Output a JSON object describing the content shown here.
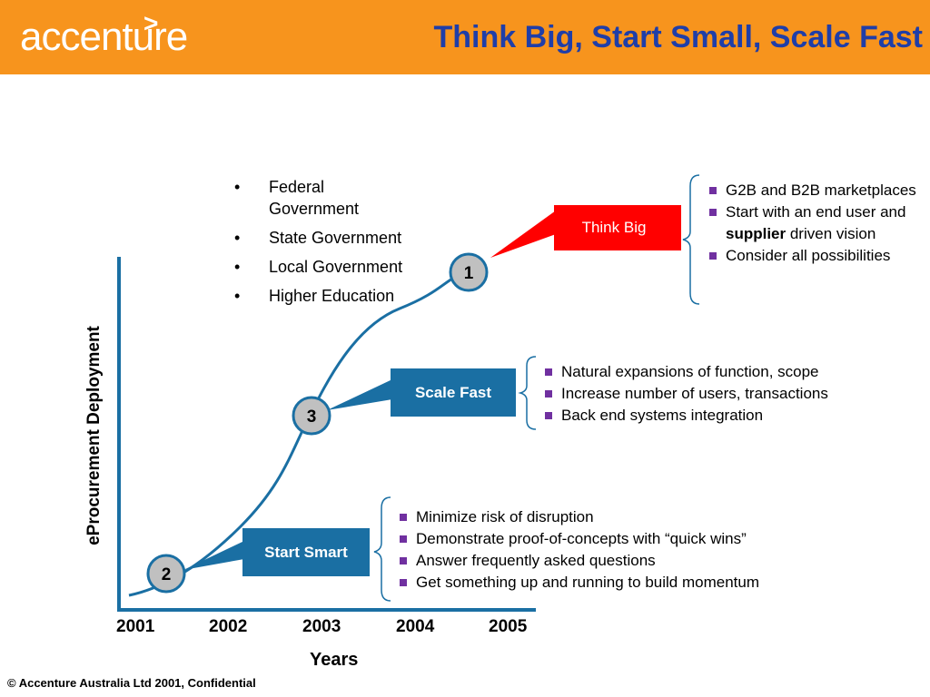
{
  "header": {
    "logo_text": "accenture",
    "logo_mark": ">",
    "title": "Think Big, Start Small, Scale Fast"
  },
  "colors": {
    "header_bg": "#f7941d",
    "title_color": "#1f3ea8",
    "think_big": "#ff0000",
    "stage_blue": "#1a6fa3",
    "curve": "#1a6fa3",
    "bullet": "#7030a0",
    "node_fill": "#c0c0c0"
  },
  "axes": {
    "ylabel": "eProcurement  Deployment",
    "xlabel": "Years",
    "ticks": [
      "2001",
      "2002",
      "2003",
      "2004",
      "2005"
    ]
  },
  "segments": [
    "Federal Government",
    "State Government",
    "Local Government",
    "Higher Education"
  ],
  "stages": {
    "think_big": {
      "number": "1",
      "label": "Think Big",
      "points": [
        "G2B and B2B marketplaces",
        "Start with an end user and supplier  driven vision",
        "Consider all possibilities"
      ]
    },
    "start_smart": {
      "number": "2",
      "label": "Start Smart",
      "points": [
        "Minimize risk of disruption",
        "Demonstrate proof-of-concepts with “quick wins”",
        "Answer frequently asked questions",
        "Get something up and running to build momentum"
      ]
    },
    "scale_fast": {
      "number": "3",
      "label": "Scale Fast",
      "points": [
        "Natural expansions of function, scope",
        "Increase number of users, transactions",
        "Back end systems integration"
      ]
    }
  },
  "footer": "© Accenture Australia Ltd 2001, Confidential"
}
